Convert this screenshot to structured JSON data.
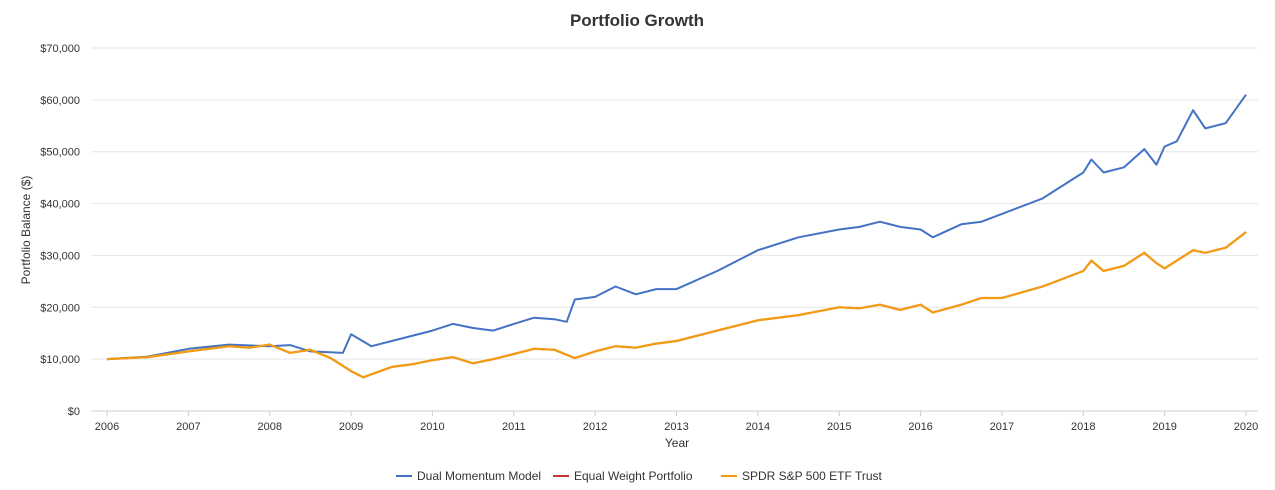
{
  "chart_data": {
    "type": "line",
    "title": "Portfolio Growth",
    "xlabel": "Year",
    "ylabel": "Portfolio Balance ($)",
    "xlim": [
      2006.0,
      2020.15
    ],
    "ylim": [
      0,
      70000
    ],
    "x_ticks": [
      "2006",
      "2007",
      "2008",
      "2009",
      "2010",
      "2011",
      "2012",
      "2013",
      "2014",
      "2015",
      "2016",
      "2017",
      "2018",
      "2019",
      "2020"
    ],
    "y_ticks": [
      "$0",
      "$10,000",
      "$20,000",
      "$30,000",
      "$40,000",
      "$50,000",
      "$60,000",
      "$70,000"
    ],
    "grid": true,
    "legend_position": "bottom",
    "series": [
      {
        "name": "Dual Momentum Model",
        "color": "#4472c4",
        "x": [
          2006.0,
          2006.5,
          2007.0,
          2007.5,
          2008.0,
          2008.25,
          2008.5,
          2008.9,
          2009.0,
          2009.25,
          2009.5,
          2010.0,
          2010.25,
          2010.5,
          2010.75,
          2011.0,
          2011.25,
          2011.5,
          2011.65,
          2011.75,
          2012.0,
          2012.25,
          2012.5,
          2012.75,
          2013.0,
          2013.5,
          2014.0,
          2014.5,
          2015.0,
          2015.25,
          2015.5,
          2015.75,
          2016.0,
          2016.15,
          2016.5,
          2016.75,
          2017.0,
          2017.5,
          2018.0,
          2018.1,
          2018.25,
          2018.5,
          2018.75,
          2018.9,
          2019.0,
          2019.15,
          2019.35,
          2019.5,
          2019.75,
          2020.0
        ],
        "values": [
          10000,
          10500,
          12000,
          12800,
          12500,
          12700,
          11500,
          11200,
          14800,
          12500,
          13500,
          15500,
          16800,
          16000,
          15500,
          16800,
          18000,
          17700,
          17200,
          21500,
          22000,
          24000,
          22500,
          23500,
          23500,
          27000,
          31000,
          33500,
          35000,
          35500,
          36500,
          35500,
          35000,
          33500,
          36000,
          36500,
          38000,
          41000,
          46000,
          48500,
          46000,
          47000,
          50500,
          47500,
          51000,
          52000,
          58000,
          54500,
          55500,
          61000
        ]
      },
      {
        "name": "Equal Weight Portfolio",
        "color": "#c0392b",
        "x": [
          2006.0,
          2006.5,
          2007.0,
          2007.5,
          2007.75,
          2008.0,
          2008.25,
          2008.5,
          2008.75,
          2009.0,
          2009.15,
          2009.5,
          2009.75,
          2010.0,
          2010.25,
          2010.5,
          2010.75,
          2011.0,
          2011.25,
          2011.5,
          2011.75,
          2012.0,
          2012.25,
          2012.5,
          2012.75,
          2013.0,
          2013.5,
          2014.0,
          2014.5,
          2015.0,
          2015.25,
          2015.5,
          2015.75,
          2016.0,
          2016.15,
          2016.5,
          2016.75,
          2017.0,
          2017.5,
          2018.0,
          2018.1,
          2018.25,
          2018.5,
          2018.75,
          2018.9,
          2019.0,
          2019.15,
          2019.35,
          2019.5,
          2019.75,
          2020.0
        ],
        "values": [
          10000,
          10400,
          11500,
          12500,
          12200,
          12800,
          11200,
          11800,
          10200,
          7700,
          6500,
          8500,
          9000,
          9800,
          10400,
          9200,
          10000,
          11000,
          12000,
          11800,
          10200,
          11500,
          12500,
          12200,
          13000,
          13500,
          15500,
          17500,
          18500,
          20000,
          19800,
          20500,
          19500,
          20500,
          19000,
          20500,
          21800,
          21800,
          24000,
          27000,
          29000,
          27000,
          28000,
          30500,
          28500,
          27500,
          29000,
          31000,
          30500,
          31500,
          34500
        ]
      },
      {
        "name": "SPDR S&P 500 ETF Trust",
        "color": "#f39c12",
        "x": [
          2006.0,
          2006.5,
          2007.0,
          2007.5,
          2007.75,
          2008.0,
          2008.25,
          2008.5,
          2008.75,
          2009.0,
          2009.15,
          2009.5,
          2009.75,
          2010.0,
          2010.25,
          2010.5,
          2010.75,
          2011.0,
          2011.25,
          2011.5,
          2011.75,
          2012.0,
          2012.25,
          2012.5,
          2012.75,
          2013.0,
          2013.5,
          2014.0,
          2014.5,
          2015.0,
          2015.25,
          2015.5,
          2015.75,
          2016.0,
          2016.15,
          2016.5,
          2016.75,
          2017.0,
          2017.5,
          2018.0,
          2018.1,
          2018.25,
          2018.5,
          2018.75,
          2018.9,
          2019.0,
          2019.15,
          2019.35,
          2019.5,
          2019.75,
          2020.0
        ],
        "values": [
          10000,
          10400,
          11500,
          12500,
          12200,
          12800,
          11200,
          11800,
          10200,
          7700,
          6500,
          8500,
          9000,
          9800,
          10400,
          9200,
          10000,
          11000,
          12000,
          11800,
          10200,
          11500,
          12500,
          12200,
          13000,
          13500,
          15500,
          17500,
          18500,
          20000,
          19800,
          20500,
          19500,
          20500,
          19000,
          20500,
          21800,
          21800,
          24000,
          27000,
          29000,
          27000,
          28000,
          30500,
          28500,
          27500,
          29000,
          31000,
          30500,
          31500,
          34500
        ]
      }
    ]
  }
}
